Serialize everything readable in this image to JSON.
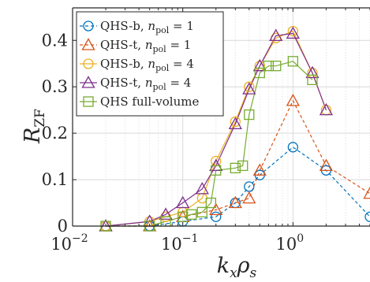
{
  "chart_data": {
    "type": "line",
    "xscale": "log",
    "xlim": [
      0.01,
      5
    ],
    "ylim": [
      0,
      0.47
    ],
    "grid": true,
    "legend_position": "top-left",
    "xlabel": "kₓρₛ",
    "ylabel": "R_ZF",
    "xlabel_parts": {
      "main": "k",
      "sub1": "x",
      "mid": "ρ",
      "sub2": "s"
    },
    "ylabel_parts": {
      "main": "R",
      "sub": "ZF"
    },
    "x_tick_labels": [
      {
        "value": 0.01,
        "base": "10",
        "exp": "−2"
      },
      {
        "value": 0.1,
        "base": "10",
        "exp": "−1"
      },
      {
        "value": 1,
        "base": "10",
        "exp": "0"
      }
    ],
    "y_ticks": [
      0,
      0.1,
      0.2,
      0.3,
      0.4
    ],
    "y_tick_labels": [
      "0",
      "0.1",
      "0.2",
      "0.3",
      "0.4"
    ],
    "series": [
      {
        "name": "QHS-b, n_pol = 1",
        "legend": {
          "prefix": "QHS-b, ",
          "var": "n",
          "sub": "pol",
          "suffix": " = 1"
        },
        "color": "#0072BD",
        "marker": "circle",
        "dash": true,
        "x": [
          0.02,
          0.05,
          0.1,
          0.2,
          0.3,
          0.4,
          0.5,
          1,
          2,
          5
        ],
        "y": [
          0.0,
          0.0,
          0.01,
          0.02,
          0.05,
          0.085,
          0.11,
          0.17,
          0.12,
          0.02
        ]
      },
      {
        "name": "QHS-t, n_pol = 1",
        "legend": {
          "prefix": "QHS-t, ",
          "var": "n",
          "sub": "pol",
          "suffix": " = 1"
        },
        "color": "#D95319",
        "marker": "triangle",
        "dash": true,
        "x": [
          0.02,
          0.05,
          0.1,
          0.2,
          0.3,
          0.4,
          0.5,
          1,
          2,
          5
        ],
        "y": [
          0.0,
          0.0,
          0.02,
          0.035,
          0.05,
          0.06,
          0.12,
          0.27,
          0.13,
          0.07
        ]
      },
      {
        "name": "QHS-b, n_pol = 4",
        "legend": {
          "prefix": "QHS-b, ",
          "var": "n",
          "sub": "pol",
          "suffix": " = 4"
        },
        "color": "#EDB120",
        "marker": "circle",
        "dash": false,
        "x": [
          0.02,
          0.05,
          0.07,
          0.1,
          0.15,
          0.2,
          0.3,
          0.4,
          0.5,
          0.7,
          1,
          1.5,
          2
        ],
        "y": [
          0.0,
          0.01,
          0.02,
          0.03,
          0.06,
          0.14,
          0.225,
          0.3,
          0.345,
          0.405,
          0.42,
          0.33,
          0.25
        ]
      },
      {
        "name": "QHS-t, n_pol = 4",
        "legend": {
          "prefix": "QHS-t, ",
          "var": "n",
          "sub": "pol",
          "suffix": " = 4"
        },
        "color": "#7E2F8E",
        "marker": "triangle",
        "dash": false,
        "x": [
          0.02,
          0.05,
          0.07,
          0.1,
          0.15,
          0.2,
          0.3,
          0.4,
          0.5,
          0.7,
          1,
          1.5,
          2
        ],
        "y": [
          0.0,
          0.01,
          0.025,
          0.05,
          0.08,
          0.13,
          0.22,
          0.295,
          0.345,
          0.41,
          0.415,
          0.33,
          0.25
        ]
      },
      {
        "name": "QHS full-volume",
        "legend": {
          "prefix": "QHS full-volume",
          "var": "",
          "sub": "",
          "suffix": ""
        },
        "color": "#77AC30",
        "marker": "square",
        "dash": false,
        "x": [
          0.02,
          0.05,
          0.07,
          0.1,
          0.12,
          0.15,
          0.18,
          0.2,
          0.3,
          0.35,
          0.4,
          0.5,
          0.6,
          0.7,
          1,
          1.5
        ],
        "y": [
          0.0,
          0.0,
          0.01,
          0.02,
          0.025,
          0.03,
          0.05,
          0.12,
          0.125,
          0.13,
          0.24,
          0.33,
          0.345,
          0.345,
          0.355,
          0.315
        ]
      }
    ]
  }
}
